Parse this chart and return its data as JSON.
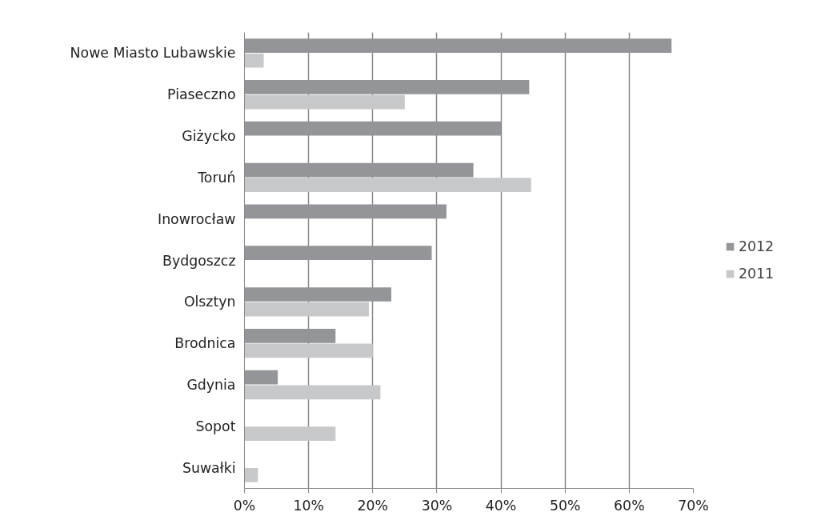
{
  "chart_data": {
    "type": "bar",
    "orientation": "horizontal",
    "categories": [
      "Nowe Miasto Lubawskie",
      "Piaseczno",
      "Giżycko",
      "Toruń",
      "Inowrocław",
      "Bydgoszcz",
      "Olsztyn",
      "Brodnica",
      "Gdynia",
      "Sopot",
      "Suwałki"
    ],
    "series": [
      {
        "name": "2012",
        "color": "#939598",
        "values": [
          66.6,
          44.4,
          40,
          35.7,
          31.5,
          29.2,
          22.9,
          14.2,
          5.2,
          null,
          null
        ]
      },
      {
        "name": "2011",
        "color": "#c7c8ca",
        "values": [
          3.0,
          25,
          null,
          44.7,
          null,
          null,
          19.4,
          20.0,
          21.2,
          14.2,
          2.1
        ]
      }
    ],
    "xlim": [
      0,
      70
    ],
    "xticks": [
      {
        "value": 0,
        "label": "0%"
      },
      {
        "value": 10,
        "label": "10%"
      },
      {
        "value": 20,
        "label": "20%"
      },
      {
        "value": 30,
        "label": "30%"
      },
      {
        "value": 40,
        "label": "40%"
      },
      {
        "value": 50,
        "label": "50%"
      },
      {
        "value": 60,
        "label": "60%"
      },
      {
        "value": 70,
        "label": "70%"
      }
    ],
    "grid": "x",
    "legend": "right"
  }
}
